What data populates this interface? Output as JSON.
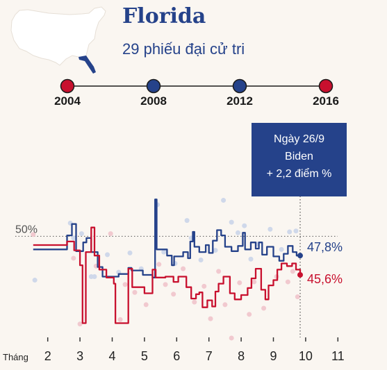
{
  "header": {
    "state": "Florida",
    "electoral_votes": "29 phiếu đại cử tri"
  },
  "colors": {
    "dem": "#25428a",
    "rep": "#c8102e",
    "dem_dot": "#cfd8ea",
    "rep_dot": "#f1c9cf",
    "map_land": "#ffffff",
    "map_highlight": "#25428a",
    "tooltip_bg": "#25428a"
  },
  "history": {
    "elections": [
      {
        "year": "2004",
        "winner": "rep"
      },
      {
        "year": "2008",
        "winner": "dem"
      },
      {
        "year": "2012",
        "winner": "dem"
      },
      {
        "year": "2016",
        "winner": "rep"
      }
    ]
  },
  "tooltip": {
    "date": "Ngày 26/9",
    "candidate": "Biden",
    "margin": "+ 2,2 điểm %"
  },
  "chart_data": {
    "type": "line",
    "xlabel": "Tháng",
    "x_ticks": [
      2,
      3,
      4,
      5,
      6,
      7,
      8,
      9,
      10,
      11
    ],
    "x_range": [
      1.5,
      11.5
    ],
    "y_range": [
      38,
      60
    ],
    "reference_line": {
      "value": 50,
      "label": "50%"
    },
    "series": [
      {
        "key": "dem",
        "end_label": "47,8%",
        "points": [
          [
            1.55,
            48.5
          ],
          [
            2.6,
            48.5
          ],
          [
            2.6,
            50.1
          ],
          [
            2.75,
            50.1
          ],
          [
            2.75,
            51.4
          ],
          [
            2.88,
            51.4
          ],
          [
            2.88,
            48.3
          ],
          [
            3.1,
            48.3
          ],
          [
            3.1,
            49.3
          ],
          [
            3.2,
            49.3
          ],
          [
            3.2,
            49.8
          ],
          [
            3.35,
            49.8
          ],
          [
            3.35,
            48.2
          ],
          [
            3.55,
            48.2
          ],
          [
            3.55,
            46.5
          ],
          [
            3.7,
            46.5
          ],
          [
            3.7,
            45.4
          ],
          [
            4.2,
            45.4
          ],
          [
            4.2,
            45.7
          ],
          [
            4.5,
            45.7
          ],
          [
            4.5,
            46.4
          ],
          [
            4.6,
            46.4
          ],
          [
            4.6,
            46.1
          ],
          [
            4.95,
            46.1
          ],
          [
            4.95,
            45.6
          ],
          [
            5.25,
            45.6
          ],
          [
            5.25,
            45.3
          ],
          [
            5.33,
            45.3
          ],
          [
            5.33,
            54.2
          ],
          [
            5.38,
            54.2
          ],
          [
            5.38,
            48.5
          ],
          [
            5.7,
            48.5
          ],
          [
            5.7,
            47.8
          ],
          [
            5.85,
            47.8
          ],
          [
            5.85,
            46.7
          ],
          [
            5.92,
            46.7
          ],
          [
            5.92,
            47.7
          ],
          [
            6.2,
            47.7
          ],
          [
            6.2,
            48.2
          ],
          [
            6.35,
            48.2
          ],
          [
            6.35,
            47.5
          ],
          [
            6.42,
            47.5
          ],
          [
            6.42,
            49.4
          ],
          [
            6.5,
            49.4
          ],
          [
            6.5,
            50.5
          ],
          [
            6.55,
            50.5
          ],
          [
            6.55,
            48.8
          ],
          [
            6.7,
            48.8
          ],
          [
            6.7,
            48.2
          ],
          [
            6.9,
            48.2
          ],
          [
            6.9,
            49.0
          ],
          [
            7.0,
            49.0
          ],
          [
            7.0,
            48.1
          ],
          [
            7.12,
            48.1
          ],
          [
            7.12,
            49.5
          ],
          [
            7.25,
            49.5
          ],
          [
            7.25,
            50.7
          ],
          [
            7.38,
            50.7
          ],
          [
            7.38,
            50.1
          ],
          [
            7.5,
            50.1
          ],
          [
            7.5,
            48.8
          ],
          [
            7.7,
            48.8
          ],
          [
            7.7,
            48.3
          ],
          [
            7.9,
            48.3
          ],
          [
            7.9,
            48.9
          ],
          [
            8.05,
            48.9
          ],
          [
            8.05,
            50.4
          ],
          [
            8.12,
            50.4
          ],
          [
            8.12,
            48.5
          ],
          [
            8.3,
            48.5
          ],
          [
            8.3,
            49.3
          ],
          [
            8.45,
            49.3
          ],
          [
            8.45,
            48.6
          ],
          [
            8.55,
            48.6
          ],
          [
            8.55,
            49.3
          ],
          [
            8.65,
            49.3
          ],
          [
            8.65,
            47.9
          ],
          [
            8.8,
            47.9
          ],
          [
            8.8,
            48.8
          ],
          [
            9.0,
            48.8
          ],
          [
            9.0,
            47.7
          ],
          [
            9.18,
            47.7
          ],
          [
            9.18,
            47.2
          ],
          [
            9.32,
            47.2
          ],
          [
            9.32,
            48.0
          ],
          [
            9.45,
            48.0
          ],
          [
            9.45,
            48.9
          ],
          [
            9.6,
            48.9
          ],
          [
            9.6,
            48.2
          ],
          [
            9.72,
            48.2
          ],
          [
            9.72,
            47.8
          ],
          [
            9.83,
            47.8
          ]
        ]
      },
      {
        "key": "rep",
        "end_label": "45,6%",
        "points": [
          [
            1.55,
            49.0
          ],
          [
            2.6,
            49.0
          ],
          [
            2.6,
            49.4
          ],
          [
            2.82,
            49.4
          ],
          [
            2.82,
            48.4
          ],
          [
            3.0,
            48.4
          ],
          [
            3.0,
            46.7
          ],
          [
            3.08,
            46.7
          ],
          [
            3.08,
            40.1
          ],
          [
            3.18,
            40.1
          ],
          [
            3.18,
            48.2
          ],
          [
            3.35,
            48.2
          ],
          [
            3.35,
            51.0
          ],
          [
            3.45,
            51.0
          ],
          [
            3.45,
            47.8
          ],
          [
            3.6,
            47.8
          ],
          [
            3.6,
            46.2
          ],
          [
            3.82,
            46.2
          ],
          [
            3.82,
            45.3
          ],
          [
            4.05,
            45.3
          ],
          [
            4.05,
            44.6
          ],
          [
            4.1,
            44.6
          ],
          [
            4.1,
            40.1
          ],
          [
            4.5,
            40.1
          ],
          [
            4.5,
            46.3
          ],
          [
            4.62,
            46.3
          ],
          [
            4.62,
            44.2
          ],
          [
            5.0,
            44.2
          ],
          [
            5.0,
            43.5
          ],
          [
            5.25,
            43.5
          ],
          [
            5.25,
            46.2
          ],
          [
            5.35,
            46.2
          ],
          [
            5.35,
            45.3
          ],
          [
            5.65,
            45.3
          ],
          [
            5.65,
            45.4
          ],
          [
            5.9,
            45.4
          ],
          [
            5.9,
            44.8
          ],
          [
            6.05,
            44.8
          ],
          [
            6.05,
            45.4
          ],
          [
            6.3,
            45.4
          ],
          [
            6.3,
            44.2
          ],
          [
            6.45,
            44.2
          ],
          [
            6.45,
            42.9
          ],
          [
            6.6,
            42.9
          ],
          [
            6.6,
            43.4
          ],
          [
            6.7,
            43.4
          ],
          [
            6.7,
            43.6
          ],
          [
            6.8,
            43.6
          ],
          [
            6.8,
            41.9
          ],
          [
            6.95,
            41.9
          ],
          [
            6.95,
            42.7
          ],
          [
            7.1,
            42.7
          ],
          [
            7.1,
            42.0
          ],
          [
            7.2,
            42.0
          ],
          [
            7.2,
            43.7
          ],
          [
            7.3,
            43.7
          ],
          [
            7.3,
            44.6
          ],
          [
            7.45,
            44.6
          ],
          [
            7.45,
            45.4
          ],
          [
            7.65,
            45.4
          ],
          [
            7.65,
            43.5
          ],
          [
            7.8,
            43.5
          ],
          [
            7.8,
            42.8
          ],
          [
            8.0,
            42.8
          ],
          [
            8.0,
            43.3
          ],
          [
            8.2,
            43.3
          ],
          [
            8.2,
            44.1
          ],
          [
            8.32,
            44.1
          ],
          [
            8.32,
            45.2
          ],
          [
            8.45,
            45.2
          ],
          [
            8.45,
            46.3
          ],
          [
            8.62,
            46.3
          ],
          [
            8.62,
            43.9
          ],
          [
            8.75,
            43.9
          ],
          [
            8.75,
            42.8
          ],
          [
            8.85,
            42.8
          ],
          [
            8.85,
            44.4
          ],
          [
            9.0,
            44.4
          ],
          [
            9.0,
            45.0
          ],
          [
            9.12,
            45.0
          ],
          [
            9.12,
            46.2
          ],
          [
            9.25,
            46.2
          ],
          [
            9.25,
            46.9
          ],
          [
            9.42,
            46.9
          ],
          [
            9.42,
            46.6
          ],
          [
            9.58,
            46.6
          ],
          [
            9.58,
            46.9
          ],
          [
            9.7,
            46.9
          ],
          [
            9.7,
            46.2
          ],
          [
            9.83,
            46.2
          ],
          [
            9.83,
            45.6
          ]
        ]
      }
    ],
    "poll_dots": {
      "dem": [
        [
          1.6,
          45.0
        ],
        [
          2.7,
          51.5
        ],
        [
          2.8,
          49.8
        ],
        [
          3.05,
          50.3
        ],
        [
          3.35,
          45.4
        ],
        [
          3.45,
          45.4
        ],
        [
          3.85,
          47.9
        ],
        [
          4.2,
          45.9
        ],
        [
          4.55,
          48.1
        ],
        [
          4.9,
          46.3
        ],
        [
          5.4,
          53.6
        ],
        [
          5.6,
          48.2
        ],
        [
          5.95,
          46.9
        ],
        [
          6.32,
          51.8
        ],
        [
          6.45,
          49.8
        ],
        [
          6.75,
          47.3
        ],
        [
          7.2,
          48.4
        ],
        [
          7.45,
          54.1
        ],
        [
          7.7,
          51.6
        ],
        [
          7.9,
          50.4
        ],
        [
          8.1,
          51.2
        ],
        [
          8.3,
          47.4
        ],
        [
          8.5,
          49.1
        ],
        [
          8.9,
          50.8
        ],
        [
          9.25,
          48.5
        ],
        [
          9.5,
          50.5
        ],
        [
          9.7,
          50.6
        ]
      ],
      "rep": [
        [
          1.55,
          50.2
        ],
        [
          2.8,
          47.5
        ],
        [
          3.0,
          40.0
        ],
        [
          3.5,
          46.6
        ],
        [
          3.95,
          50.3
        ],
        [
          4.25,
          40.5
        ],
        [
          4.4,
          44.5
        ],
        [
          4.7,
          43.6
        ],
        [
          5.05,
          42.2
        ],
        [
          5.45,
          46.8
        ],
        [
          5.65,
          44.5
        ],
        [
          5.9,
          43.4
        ],
        [
          6.2,
          46.3
        ],
        [
          6.55,
          42.5
        ],
        [
          6.85,
          44.3
        ],
        [
          7.05,
          40.6
        ],
        [
          7.3,
          46.0
        ],
        [
          7.5,
          42.2
        ],
        [
          7.7,
          38.4
        ],
        [
          7.95,
          44.7
        ],
        [
          8.25,
          41.1
        ],
        [
          8.4,
          44.8
        ],
        [
          8.7,
          41.8
        ],
        [
          9.1,
          45.4
        ],
        [
          9.45,
          44.8
        ],
        [
          9.6,
          46.0
        ],
        [
          9.75,
          43.1
        ]
      ]
    },
    "highlight": {
      "x": 9.83,
      "y_range_top": 56
    }
  }
}
